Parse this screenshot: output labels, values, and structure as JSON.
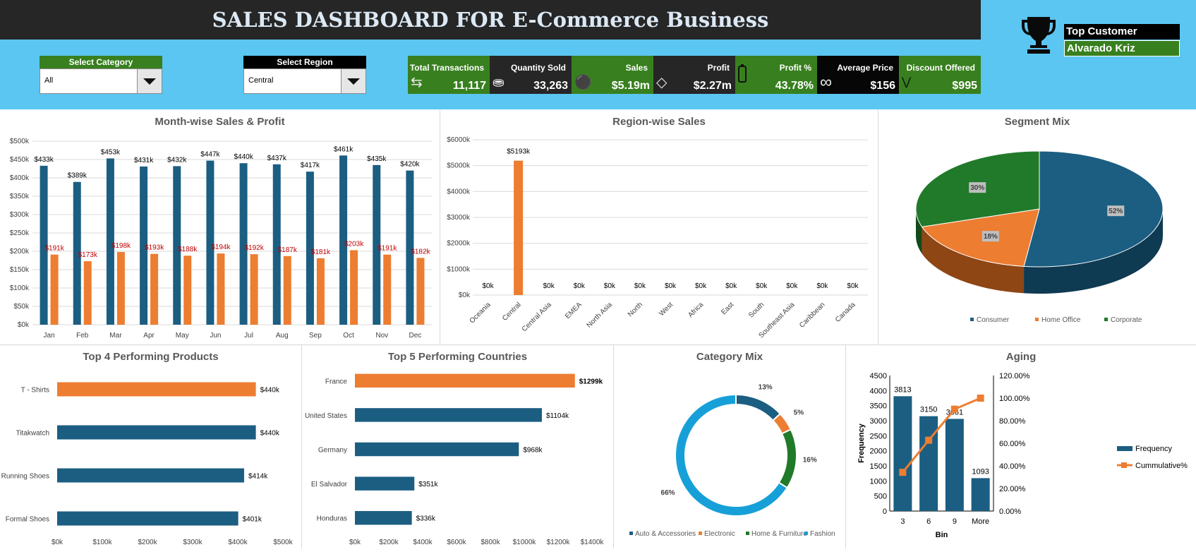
{
  "header": {
    "title": "SALES DASHBOARD FOR E-Commerce Business",
    "top_customer_label": "Top Customer",
    "top_customer_value": "Alvarado Kriz"
  },
  "filters": {
    "category": {
      "label": "Select Category",
      "value": "All"
    },
    "region": {
      "label": "Select Region",
      "value": "Central"
    }
  },
  "kpis": [
    {
      "label": "Total Transactions",
      "value": "11,117",
      "icon": "swap-arrows-icon",
      "color": "#38801f"
    },
    {
      "label": "Quantity Sold",
      "value": "33,263",
      "icon": "database-icon",
      "color": "#262626"
    },
    {
      "label": "Sales",
      "value": "$5.19m",
      "icon": "coins-icon",
      "color": "#38801f"
    },
    {
      "label": "Profit",
      "value": "$2.27m",
      "icon": "diamond-icon",
      "color": "#262626"
    },
    {
      "label": "Profit %",
      "value": "43.78%",
      "icon": "battery-icon",
      "color": "#38801f"
    },
    {
      "label": "Average Price",
      "value": "$156",
      "icon": "infinity-icon",
      "color": "#060606"
    },
    {
      "label": "Discount Offered",
      "value": "$995",
      "icon": "chevrons-down-icon",
      "color": "#38801f"
    }
  ],
  "colors": {
    "blue": "#1b5e82",
    "orange": "#ed7d31",
    "green": "#217a2a",
    "lightblue": "#17a0d8",
    "red": "#c00000"
  },
  "chart_data": [
    {
      "id": "month",
      "type": "bar",
      "title": "Month-wise Sales & Profit",
      "categories": [
        "Jan",
        "Feb",
        "Mar",
        "Apr",
        "May",
        "Jun",
        "Jul",
        "Aug",
        "Sep",
        "Oct",
        "Nov",
        "Dec"
      ],
      "series": [
        {
          "values": [
            433,
            389,
            453,
            431,
            432,
            447,
            440,
            437,
            417,
            461,
            435,
            420
          ],
          "labels": [
            "$433k",
            "$389k",
            "$453k",
            "$431k",
            "$432k",
            "$447k",
            "$440k",
            "$437k",
            "$417k",
            "$461k",
            "$435k",
            "$420k"
          ]
        },
        {
          "values": [
            191,
            173,
            198,
            193,
            188,
            194,
            192,
            187,
            181,
            203,
            191,
            182
          ],
          "labels": [
            "$191k",
            "$173k",
            "$198k",
            "$193k",
            "$188k",
            "$194k",
            "$192k",
            "$187k",
            "$181k",
            "$203k",
            "$191k",
            "$182k"
          ]
        }
      ],
      "ylim": [
        0,
        500
      ],
      "yticks": [
        "$0k",
        "$50k",
        "$100k",
        "$150k",
        "$200k",
        "$250k",
        "$300k",
        "$350k",
        "$400k",
        "$450k",
        "$500k"
      ]
    },
    {
      "id": "region",
      "type": "bar",
      "title": "Region-wise Sales",
      "categories": [
        "Oceania",
        "Central",
        "Central Asia",
        "EMEA",
        "North Asia",
        "North",
        "West",
        "Africa",
        "East",
        "South",
        "Southeast Asia",
        "Caribbean",
        "Canada"
      ],
      "values": [
        0,
        5193,
        0,
        0,
        0,
        0,
        0,
        0,
        0,
        0,
        0,
        0,
        0
      ],
      "labels": [
        "$0k",
        "$5193k",
        "$0k",
        "$0k",
        "$0k",
        "$0k",
        "$0k",
        "$0k",
        "$0k",
        "$0k",
        "$0k",
        "$0k",
        "$0k"
      ],
      "ylim": [
        0,
        6000
      ],
      "yticks": [
        "$0k",
        "$1000k",
        "$2000k",
        "$3000k",
        "$4000k",
        "$5000k",
        "$6000k"
      ]
    },
    {
      "id": "segment",
      "type": "pie",
      "title": "Segment Mix",
      "categories": [
        "Consumer",
        "Home Office",
        "Corporate"
      ],
      "values": [
        52,
        18,
        30
      ],
      "labels": [
        "52%",
        "18%",
        "30%"
      ]
    },
    {
      "id": "products",
      "type": "bar",
      "orientation": "horizontal",
      "title": "Top 4 Performing Products",
      "categories": [
        "T - Shirts",
        "Titakwatch",
        "Running Shoes",
        "Formal Shoes"
      ],
      "values": [
        440,
        440,
        414,
        401
      ],
      "labels": [
        "$440k",
        "$440k",
        "$414k",
        "$401k"
      ],
      "xlim": [
        0,
        500
      ],
      "xticks": [
        "$0k",
        "$100k",
        "$200k",
        "$300k",
        "$400k",
        "$500k"
      ]
    },
    {
      "id": "countries",
      "type": "bar",
      "orientation": "horizontal",
      "title": "Top 5 Performing Countries",
      "categories": [
        "France",
        "United States",
        "Germany",
        "El Salvador",
        "Honduras"
      ],
      "values": [
        1299,
        1104,
        968,
        351,
        336
      ],
      "labels": [
        "$1299k",
        "$1104k",
        "$968k",
        "$351k",
        "$336k"
      ],
      "xlim": [
        0,
        1400
      ],
      "xticks": [
        "$0k",
        "$200k",
        "$400k",
        "$600k",
        "$800k",
        "$1000k",
        "$1200k",
        "$1400k"
      ]
    },
    {
      "id": "category",
      "type": "pie",
      "donut": true,
      "title": "Category Mix",
      "categories": [
        "Auto & Accessories",
        "Electronic",
        "Home & Furniture",
        "Fashion"
      ],
      "values": [
        13,
        5,
        16,
        66
      ],
      "labels": [
        "13%",
        "5%",
        "16%",
        "66%"
      ]
    },
    {
      "id": "aging",
      "type": "bar",
      "title": "Aging",
      "categories": [
        "3",
        "6",
        "9",
        "More"
      ],
      "series": [
        {
          "name": "Frequency",
          "values": [
            3813,
            3150,
            3061,
            1093
          ]
        },
        {
          "name": "Cummulative%",
          "type": "line",
          "values": [
            34.3,
            62.7,
            90.2,
            100
          ]
        }
      ],
      "xlabel": "Bin",
      "ylabel": "Frequency",
      "ylim": [
        0,
        4500
      ],
      "yticks": [
        "0",
        "500",
        "1000",
        "1500",
        "2000",
        "2500",
        "3000",
        "3500",
        "4000",
        "4500"
      ],
      "y2lim": [
        0,
        120
      ],
      "y2ticks": [
        "0.00%",
        "20.00%",
        "40.00%",
        "60.00%",
        "80.00%",
        "100.00%",
        "120.00%"
      ]
    }
  ]
}
